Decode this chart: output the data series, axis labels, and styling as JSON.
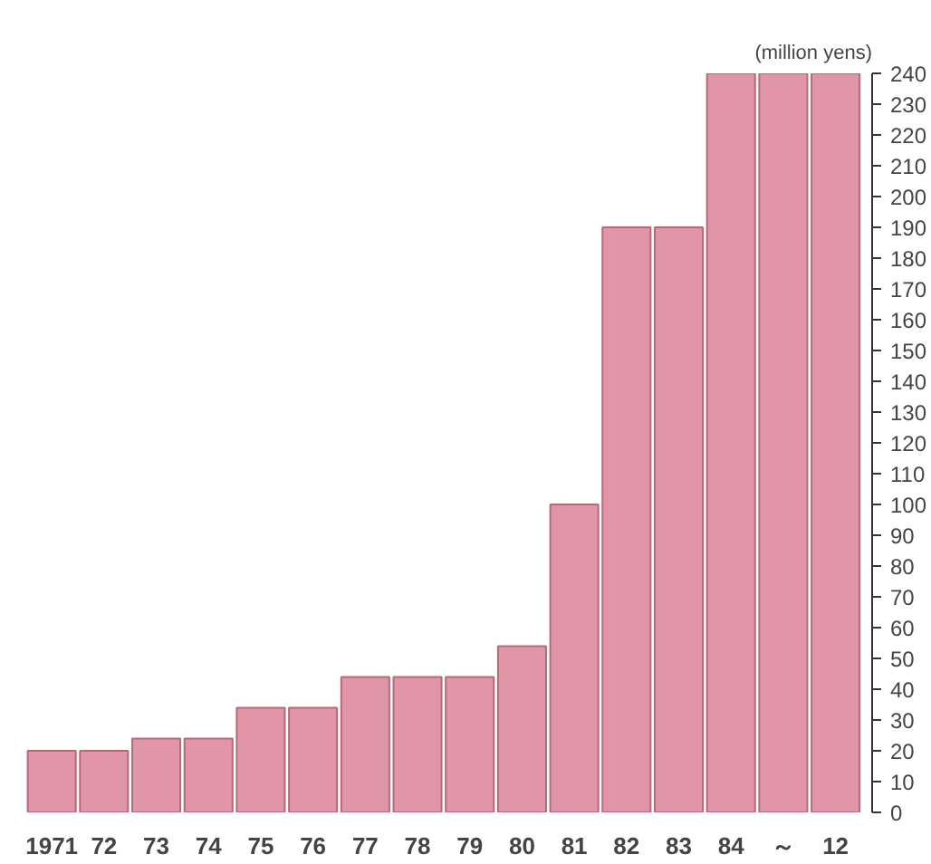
{
  "chart_data": {
    "type": "bar",
    "ylabel": "(million yens)",
    "categories": [
      "1971",
      "72",
      "73",
      "74",
      "75",
      "76",
      "77",
      "78",
      "79",
      "80",
      "81",
      "82",
      "83",
      "84",
      "～",
      "12"
    ],
    "series": [
      {
        "color": "#e096a6",
        "values": [
          20,
          20,
          24,
          24,
          34,
          34,
          44,
          44,
          44,
          54,
          100,
          190,
          190,
          240,
          240,
          240
        ]
      }
    ],
    "ylim": [
      0,
      240
    ],
    "yticks": [
      0,
      10,
      20,
      30,
      40,
      50,
      60,
      70,
      80,
      90,
      100,
      110,
      120,
      130,
      140,
      150,
      160,
      170,
      180,
      190,
      200,
      210,
      220,
      230,
      240
    ],
    "grid": false
  }
}
